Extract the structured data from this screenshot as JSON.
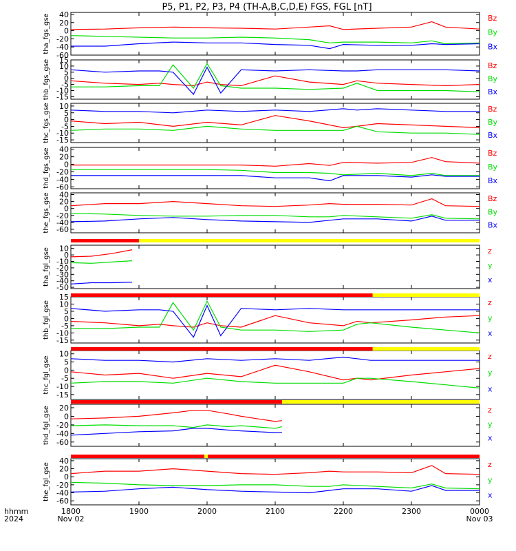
{
  "title": "P5, P1, P2, P3, P4 (TH-A,B,C,D,E) FGS, FGL [nT]",
  "colors": {
    "x": "#0000ff",
    "y": "#00dd00",
    "z": "#ff0000",
    "bar_red": "#ff0000",
    "bar_yellow": "#ffff00",
    "axis": "#000000"
  },
  "x_axis": {
    "row_label": "hhmm",
    "date_label": "2024",
    "ticks": [
      {
        "value": "1800",
        "sub": "Nov 02"
      },
      {
        "value": "1900",
        "sub": ""
      },
      {
        "value": "2000",
        "sub": ""
      },
      {
        "value": "2100",
        "sub": ""
      },
      {
        "value": "2200",
        "sub": ""
      },
      {
        "value": "2300",
        "sub": ""
      },
      {
        "value": "0000",
        "sub": "Nov 03"
      }
    ]
  },
  "chart_data": [
    {
      "type": "line",
      "ylabel": "tha_fgs_gse",
      "ylim": [
        -60,
        45
      ],
      "yticks": [
        "40",
        "20",
        "0",
        "-20",
        "-40",
        "-60"
      ],
      "legend": [
        "Bz",
        "By",
        "Bx"
      ],
      "x": [
        18.0,
        18.5,
        19.0,
        19.5,
        20.0,
        20.5,
        21.0,
        21.5,
        21.8,
        22.0,
        22.5,
        23.0,
        23.3,
        23.5,
        24.0
      ],
      "series": [
        {
          "name": "Bz",
          "values": [
            3,
            4,
            7,
            9,
            7,
            6,
            4,
            9,
            12,
            3,
            6,
            9,
            22,
            9,
            4
          ]
        },
        {
          "name": "By",
          "values": [
            -12,
            -14,
            -16,
            -18,
            -18,
            -16,
            -18,
            -22,
            -30,
            -28,
            -28,
            -30,
            -25,
            -32,
            -30
          ]
        },
        {
          "name": "Bx",
          "values": [
            -38,
            -38,
            -32,
            -28,
            -30,
            -30,
            -34,
            -36,
            -44,
            -34,
            -36,
            -36,
            -32,
            -34,
            -32
          ]
        }
      ]
    },
    {
      "type": "line",
      "ylabel": "thb_fgs_gse",
      "ylim": [
        -17,
        15
      ],
      "yticks": [
        "15",
        "10",
        "5",
        "0",
        "-5",
        "-10",
        "-15"
      ],
      "legend": [
        "Bz",
        "By",
        "Bx"
      ],
      "x": [
        18.0,
        18.5,
        19.0,
        19.3,
        19.5,
        19.8,
        20.0,
        20.2,
        20.5,
        21.0,
        21.5,
        22.0,
        22.2,
        22.5,
        23.0,
        23.5,
        24.0
      ],
      "series": [
        {
          "name": "Bz",
          "values": [
            -2,
            -4,
            -5,
            -4,
            -5,
            -6,
            -3,
            -5,
            -6,
            2,
            -3,
            -5,
            -2,
            -4,
            -5,
            -6,
            -5
          ]
        },
        {
          "name": "By",
          "values": [
            -7,
            -7,
            -6,
            -6,
            11,
            -8,
            12,
            -6,
            -8,
            -8,
            -9,
            -8,
            -4,
            -10,
            -10,
            -10,
            -11
          ]
        },
        {
          "name": "Bx",
          "values": [
            7,
            5,
            6,
            6,
            5,
            -13,
            9,
            -12,
            7,
            6,
            7,
            6,
            6,
            7,
            7,
            7,
            6
          ]
        }
      ]
    },
    {
      "type": "line",
      "ylabel": "thc_fgs_gse",
      "ylim": [
        -17,
        12
      ],
      "yticks": [
        "10",
        "5",
        "0",
        "-5",
        "-10",
        "-15"
      ],
      "legend": [
        "Bz",
        "By",
        "Bx"
      ],
      "x": [
        18.0,
        18.5,
        19.0,
        19.5,
        20.0,
        20.5,
        21.0,
        21.5,
        22.0,
        22.2,
        22.5,
        23.0,
        23.5,
        24.0
      ],
      "series": [
        {
          "name": "Bz",
          "values": [
            -1,
            -3,
            -2,
            -5,
            -2,
            -4,
            3,
            -1,
            -6,
            -5,
            -3,
            -4,
            -5,
            -6
          ]
        },
        {
          "name": "By",
          "values": [
            -8,
            -7,
            -7,
            -8,
            -5,
            -7,
            -8,
            -8,
            -8,
            -5,
            -9,
            -10,
            -10,
            -11
          ]
        },
        {
          "name": "Bx",
          "values": [
            7,
            6,
            6,
            5,
            7,
            6,
            7,
            6,
            8,
            7,
            8,
            7,
            6,
            6
          ]
        }
      ]
    },
    {
      "type": "line",
      "ylabel": "thd_fgs_gse",
      "ylim": [
        -65,
        45
      ],
      "yticks": [
        "40",
        "20",
        "0",
        "-20",
        "-40",
        "-60"
      ],
      "legend": [
        "Bz",
        "By",
        "Bx"
      ],
      "x": [
        18.0,
        19.0,
        20.0,
        20.5,
        21.0,
        21.5,
        21.8,
        22.0,
        22.5,
        23.0,
        23.3,
        23.5,
        24.0
      ],
      "series": [
        {
          "name": "Bz",
          "values": [
            -2,
            -2,
            -2,
            -2,
            -5,
            2,
            -3,
            5,
            3,
            5,
            18,
            7,
            3
          ]
        },
        {
          "name": "By",
          "values": [
            -14,
            -14,
            -14,
            -16,
            -22,
            -22,
            -24,
            -28,
            -24,
            -30,
            -24,
            -30,
            -30
          ]
        },
        {
          "name": "Bx",
          "values": [
            -30,
            -30,
            -30,
            -30,
            -36,
            -36,
            -44,
            -30,
            -30,
            -34,
            -28,
            -32,
            -32
          ]
        }
      ]
    },
    {
      "type": "line",
      "ylabel": "the_fgs_gse",
      "ylim": [
        -70,
        45
      ],
      "yticks": [
        "40",
        "20",
        "0",
        "-20",
        "-40",
        "-60"
      ],
      "legend": [
        "Bz",
        "By",
        "Bx"
      ],
      "x": [
        18.0,
        18.5,
        19.0,
        19.5,
        20.0,
        20.5,
        21.0,
        21.5,
        21.8,
        22.0,
        22.5,
        23.0,
        23.3,
        23.5,
        24.0
      ],
      "series": [
        {
          "name": "Bz",
          "values": [
            8,
            14,
            14,
            20,
            14,
            8,
            6,
            10,
            14,
            12,
            12,
            10,
            28,
            8,
            6
          ]
        },
        {
          "name": "By",
          "values": [
            -14,
            -16,
            -20,
            -22,
            -22,
            -20,
            -20,
            -24,
            -24,
            -20,
            -24,
            -28,
            -18,
            -28,
            -30
          ]
        },
        {
          "name": "Bx",
          "values": [
            -38,
            -36,
            -30,
            -26,
            -32,
            -36,
            -38,
            -40,
            -34,
            -30,
            -30,
            -36,
            -22,
            -34,
            -34
          ]
        }
      ]
    },
    {
      "type": "line",
      "ylabel": "tha_fgl_gse",
      "ylim": [
        -52,
        15
      ],
      "yticks": [
        "10",
        "0",
        "-10",
        "-20",
        "-30",
        "-40",
        "-50"
      ],
      "legend": [
        "z",
        "y",
        "x"
      ],
      "x": [
        18.0,
        18.3,
        18.6,
        18.9
      ],
      "series": [
        {
          "name": "z",
          "values": [
            -3,
            -2,
            2,
            8
          ]
        },
        {
          "name": "y",
          "values": [
            -12,
            -13,
            -11,
            -9
          ]
        },
        {
          "name": "x",
          "values": [
            -45,
            -43,
            -43,
            -42
          ]
        }
      ]
    },
    {
      "type": "line",
      "ylabel": "thb_fgl_gse",
      "ylim": [
        -17,
        15
      ],
      "yticks": [
        "15",
        "10",
        "5",
        "0",
        "-5",
        "-10",
        "-15"
      ],
      "legend": [
        "z",
        "y",
        "x"
      ],
      "x": [
        18.0,
        18.5,
        19.0,
        19.3,
        19.5,
        19.8,
        20.0,
        20.2,
        20.5,
        21.0,
        21.5,
        22.0,
        22.2,
        22.4,
        23.0,
        23.5,
        24.0
      ],
      "series": [
        {
          "name": "z",
          "values": [
            -2,
            -3,
            -5,
            -4,
            -5,
            -6,
            -3,
            -5,
            -6,
            2,
            -3,
            -5,
            -2,
            -3,
            -1,
            1,
            2
          ]
        },
        {
          "name": "y",
          "values": [
            -7,
            -7,
            -6,
            -6,
            11,
            -8,
            12,
            -6,
            -8,
            -8,
            -9,
            -8,
            -4,
            -3,
            -6,
            -8,
            -10
          ]
        },
        {
          "name": "x",
          "values": [
            7,
            5,
            6,
            6,
            5,
            -13,
            9,
            -12,
            7,
            6,
            7,
            6,
            6,
            6,
            6,
            6,
            6
          ]
        }
      ]
    },
    {
      "type": "line",
      "ylabel": "thc_fgl_gse",
      "ylim": [
        -18,
        12
      ],
      "yticks": [
        "10",
        "5",
        "0",
        "-5",
        "-10",
        "-15"
      ],
      "legend": [
        "z",
        "y",
        "x"
      ],
      "x": [
        18.0,
        18.5,
        19.0,
        19.5,
        20.0,
        20.5,
        21.0,
        21.5,
        22.0,
        22.2,
        22.4,
        23.0,
        23.5,
        24.0
      ],
      "series": [
        {
          "name": "z",
          "values": [
            -1,
            -3,
            -2,
            -5,
            -2,
            -4,
            3,
            -1,
            -6,
            -5,
            -6,
            -3,
            -1,
            1
          ]
        },
        {
          "name": "y",
          "values": [
            -8,
            -7,
            -7,
            -8,
            -5,
            -7,
            -8,
            -8,
            -8,
            -5,
            -5,
            -7,
            -9,
            -11
          ]
        },
        {
          "name": "x",
          "values": [
            7,
            6,
            6,
            5,
            7,
            6,
            7,
            6,
            8,
            7,
            6,
            6,
            6,
            6
          ]
        }
      ]
    },
    {
      "type": "line",
      "ylabel": "thd_fgl_gse",
      "ylim": [
        -70,
        28
      ],
      "yticks": [
        "20",
        "0",
        "-20",
        "-40",
        "-60"
      ],
      "legend": [
        "z",
        "y",
        "x"
      ],
      "x": [
        18.0,
        18.5,
        19.0,
        19.5,
        19.8,
        20.0,
        20.3,
        20.5,
        21.0,
        21.1
      ],
      "series": [
        {
          "name": "z",
          "values": [
            -6,
            -4,
            0,
            8,
            14,
            14,
            6,
            0,
            -12,
            -10
          ]
        },
        {
          "name": "y",
          "values": [
            -22,
            -20,
            -22,
            -22,
            -26,
            -20,
            -24,
            -22,
            -28,
            -24
          ]
        },
        {
          "name": "x",
          "values": [
            -44,
            -40,
            -36,
            -34,
            -28,
            -28,
            -32,
            -34,
            -38,
            -38
          ]
        }
      ]
    },
    {
      "type": "line",
      "ylabel": "the_fgl_gse",
      "ylim": [
        -70,
        45
      ],
      "yticks": [
        "40",
        "20",
        "0",
        "-20",
        "-40",
        "-60"
      ],
      "legend": [
        "z",
        "y",
        "x"
      ],
      "x": [
        18.0,
        18.5,
        19.0,
        19.5,
        20.0,
        20.5,
        21.0,
        21.5,
        21.8,
        22.0,
        22.5,
        23.0,
        23.3,
        23.5,
        24.0
      ],
      "series": [
        {
          "name": "z",
          "values": [
            8,
            14,
            14,
            20,
            14,
            8,
            6,
            10,
            14,
            12,
            12,
            10,
            28,
            8,
            6
          ]
        },
        {
          "name": "y",
          "values": [
            -14,
            -16,
            -20,
            -22,
            -22,
            -20,
            -20,
            -24,
            -24,
            -20,
            -24,
            -28,
            -18,
            -28,
            -30
          ]
        },
        {
          "name": "x",
          "values": [
            -38,
            -36,
            -30,
            -26,
            -32,
            -36,
            -38,
            -40,
            -34,
            -30,
            -30,
            -36,
            -22,
            -34,
            -34
          ]
        }
      ]
    }
  ]
}
